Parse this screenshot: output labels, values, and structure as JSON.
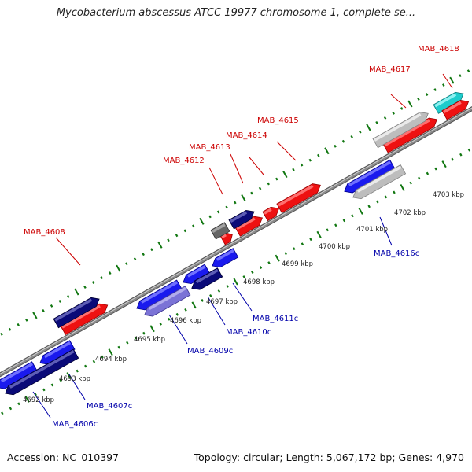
{
  "header": {
    "title": "Mycobacterium abscessus ATCC 19977 chromosome 1, complete se..."
  },
  "footer": {
    "accession": "Accession: NC_010397",
    "summary": "Topology: circular; Length: 5,067,172 bp; Genes: 4,970"
  },
  "colors": {
    "label_forward": "#cc0000",
    "label_reverse": "#0000aa",
    "tick_green": "#117711",
    "backbone": "#8a8a8a"
  },
  "scale_labels": [
    "4692 kbp",
    "4693 kbp",
    "4694 kbp",
    "4695 kbp",
    "4696 kbp",
    "4697 kbp",
    "4698 kbp",
    "4699 kbp",
    "4700 kbp",
    "4701 kbp",
    "4702 kbp",
    "4703 kbp"
  ],
  "gene_labels": [
    {
      "text": "MAB_4618",
      "strand": "forward"
    },
    {
      "text": "MAB_4617",
      "strand": "forward"
    },
    {
      "text": "MAB_4615",
      "strand": "forward"
    },
    {
      "text": "MAB_4614",
      "strand": "forward"
    },
    {
      "text": "MAB_4613",
      "strand": "forward"
    },
    {
      "text": "MAB_4612",
      "strand": "forward"
    },
    {
      "text": "MAB_4608",
      "strand": "forward"
    },
    {
      "text": "MAB_4616c",
      "strand": "reverse"
    },
    {
      "text": "MAB_4611c",
      "strand": "reverse"
    },
    {
      "text": "MAB_4610c",
      "strand": "reverse"
    },
    {
      "text": "MAB_4609c",
      "strand": "reverse"
    },
    {
      "text": "MAB_4607c",
      "strand": "reverse"
    },
    {
      "text": "MAB_4606c",
      "strand": "reverse"
    }
  ],
  "feature_colors": [
    "red",
    "blue",
    "navy",
    "lavender",
    "grey",
    "darkgrey",
    "cyan"
  ]
}
